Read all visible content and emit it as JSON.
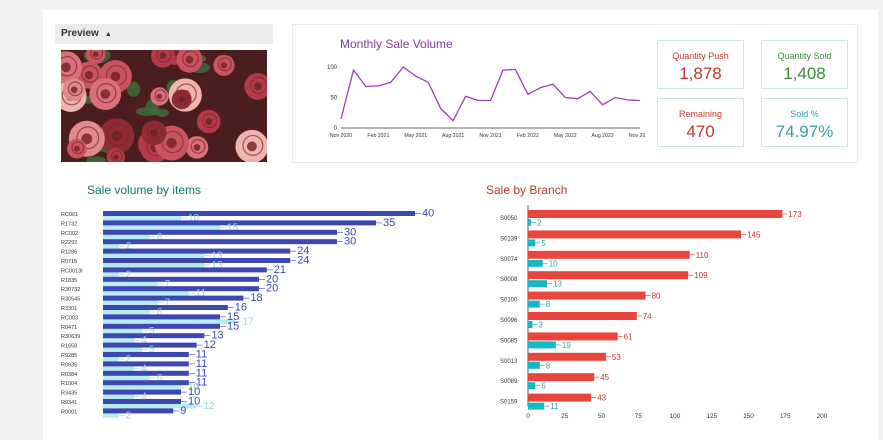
{
  "preview": {
    "header": "Preview",
    "caret": "▲"
  },
  "line": {
    "title": "Monthly Sale Volume",
    "chart_data": {
      "type": "line",
      "title": "Monthly Sale Volume",
      "x_ticks": [
        "Nov 2020",
        "Feb 2021",
        "May 2021",
        "Aug 2021",
        "Nov 2021",
        "Feb 2022",
        "May 2022",
        "Aug 2022",
        "Nov 2022"
      ],
      "y_ticks": [
        0,
        50,
        100
      ],
      "ylim": [
        0,
        100
      ],
      "values": [
        15,
        95,
        68,
        69,
        75,
        100,
        85,
        75,
        32,
        12,
        52,
        45,
        45,
        95,
        96,
        55,
        66,
        72,
        50,
        48,
        60,
        38,
        50,
        46,
        45
      ],
      "color": "#9b3fb8"
    }
  },
  "kpis": [
    {
      "label": "Quantity Push",
      "value": "1,878",
      "color": "#c0392b"
    },
    {
      "label": "Quantity Sold",
      "value": "1,408",
      "color": "#3c8a3c"
    },
    {
      "label": "Remaining",
      "value": "470",
      "color": "#c0392b"
    },
    {
      "label": "Sold %",
      "value": "74.97%",
      "color": "#3a9ea5"
    }
  ],
  "items": {
    "title": "Sale volume by items",
    "chart_data": {
      "type": "bar",
      "orientation": "horizontal",
      "max": 40,
      "categories": [
        "RC001",
        "R1732",
        "RC002",
        "R2292",
        "R1286",
        "R0715",
        "RC0013I",
        "R1835",
        "R30732",
        "R30545",
        "R3301",
        "RC003",
        "R0471",
        "R30639",
        "R1658",
        "R9285",
        "R0935",
        "R0384",
        "R1004",
        "R3435",
        "R9341",
        "R0001"
      ],
      "series": [
        {
          "values": [
            40,
            35,
            30,
            30,
            24,
            24,
            21,
            20,
            20,
            18,
            16,
            15,
            15,
            13,
            12,
            11,
            11,
            11,
            11,
            10,
            10,
            9
          ],
          "color": "#3d47b0",
          "label_color": "#3d47b0"
        },
        {
          "values": [
            10,
            15,
            6,
            2,
            13,
            13,
            2,
            7,
            11,
            7,
            6,
            17,
            5,
            4,
            5,
            2,
            4,
            6,
            10,
            4,
            12,
            2
          ],
          "color": "#b5ecf3",
          "label_color": "#9ad6e0"
        }
      ]
    }
  },
  "branch": {
    "title": "Sale by Branch",
    "chart_data": {
      "type": "bar",
      "orientation": "horizontal",
      "categories": [
        "S0050",
        "S0139",
        "S0074",
        "S0008",
        "S0100",
        "S0096",
        "S0085",
        "S0013",
        "S0089",
        "S0159"
      ],
      "x_ticks": [
        0,
        25,
        50,
        75,
        100,
        125,
        150,
        175,
        200
      ],
      "xlim": [
        0,
        200
      ],
      "series": [
        {
          "values": [
            173,
            145,
            110,
            109,
            80,
            74,
            61,
            53,
            45,
            43
          ],
          "color": "#e8453c",
          "label_color": "#c0392b"
        },
        {
          "values": [
            2,
            5,
            10,
            13,
            8,
            3,
            19,
            8,
            5,
            11
          ],
          "color": "#13b9c6",
          "label_color": "#2a9fb0"
        }
      ]
    }
  }
}
